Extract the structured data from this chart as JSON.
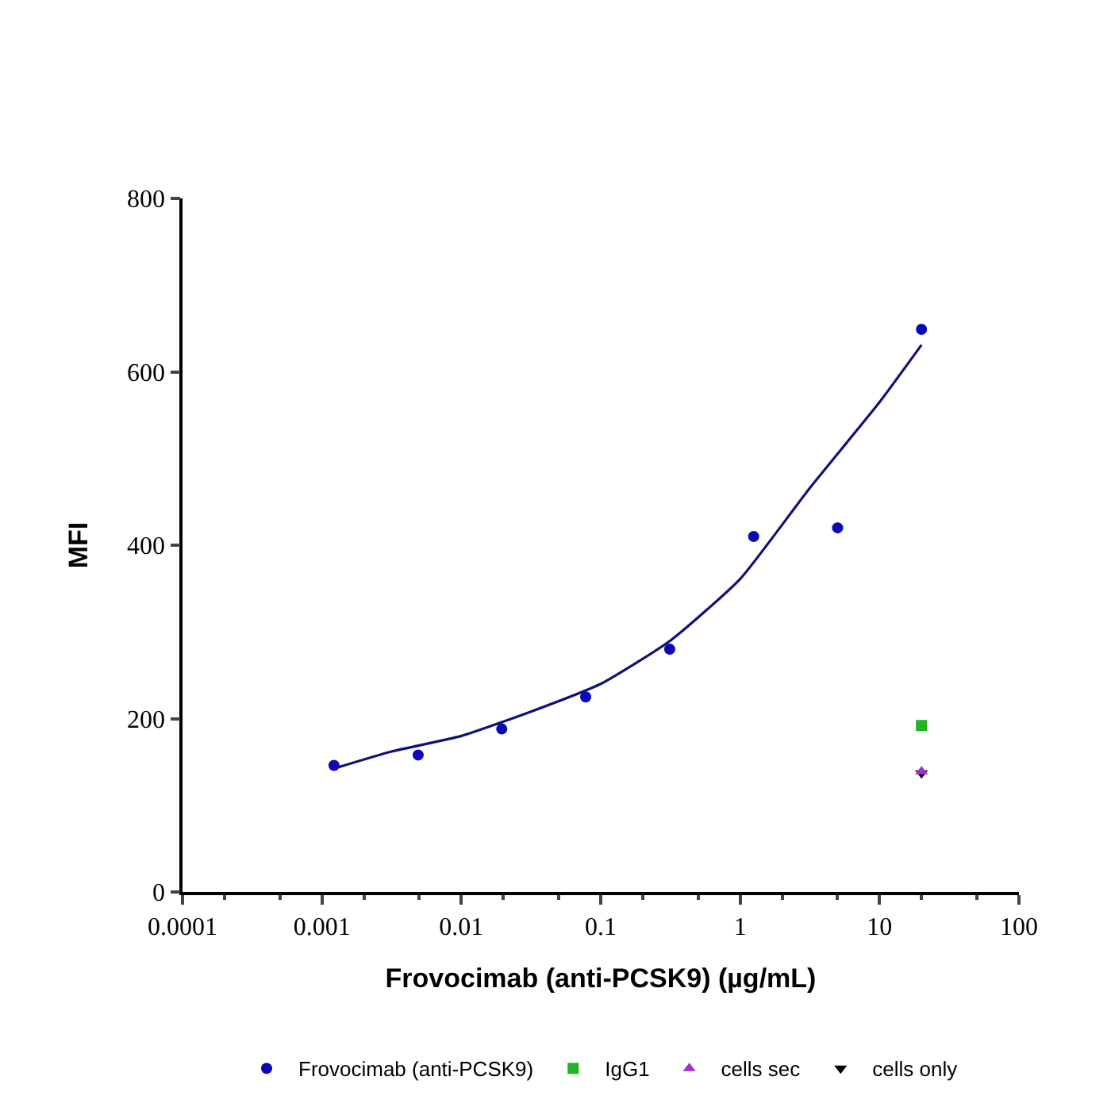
{
  "chart_data": {
    "type": "scatter",
    "xlabel": "Frovocimab (anti-PCSK9) (µg/mL)",
    "ylabel": "MFI",
    "log": "x",
    "xlim": [
      0.0001,
      100
    ],
    "xticks": [
      0.0001,
      0.001,
      0.01,
      0.1,
      1,
      10,
      100
    ],
    "ylim": [
      0,
      800
    ],
    "yticks": [
      0,
      200,
      400,
      600,
      800
    ],
    "legend": "bottom",
    "series": [
      {
        "name": "Frovocimab (anti-PCSK9)",
        "marker": "circle",
        "color": "#0a0ab4",
        "x": [
          0.00122,
          0.0049,
          0.0195,
          0.078,
          0.3125,
          1.25,
          5,
          20
        ],
        "values": [
          146,
          158,
          188,
          225,
          280,
          410,
          420,
          649
        ]
      },
      {
        "type": "line",
        "marker": "none",
        "color": "#10107a",
        "x": [
          0.0012,
          0.00316,
          0.01,
          0.0316,
          0.1,
          0.316,
          1,
          3.16,
          10,
          20
        ],
        "values": [
          142,
          162,
          180,
          208,
          240,
          290,
          361,
          466,
          565,
          631
        ]
      },
      {
        "name": "IgG1",
        "marker": "square",
        "color": "#22b422",
        "x": [
          20
        ],
        "values": [
          192
        ]
      },
      {
        "name": "cells sec",
        "marker": "triangle",
        "color": "#a030c8",
        "x": [
          20
        ],
        "values": [
          139
        ]
      },
      {
        "name": "cells only",
        "marker": "triangle-down",
        "color": "#000000",
        "x": [
          20
        ],
        "values": [
          137
        ]
      }
    ]
  }
}
